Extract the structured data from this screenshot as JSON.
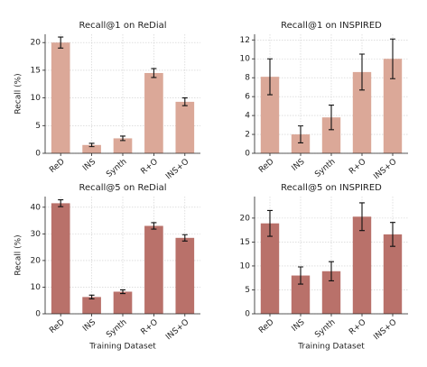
{
  "chart_data": [
    {
      "type": "bar",
      "title": "Recall@1 on ReDial",
      "ylabel": "Recall (%)",
      "categories": [
        "ReD",
        "INS",
        "Synth",
        "R+O",
        "INS+O"
      ],
      "values": [
        20.0,
        1.5,
        2.7,
        14.5,
        9.3
      ],
      "errors": [
        1.0,
        0.3,
        0.4,
        0.8,
        0.7
      ],
      "color": "#dba898",
      "ylim": [
        0,
        21.5
      ],
      "yticks": [
        0,
        5,
        10,
        15,
        20
      ],
      "grid": true
    },
    {
      "type": "bar",
      "title": "Recall@1 on INSPIRED",
      "categories": [
        "ReD",
        "INS",
        "Synth",
        "R+O",
        "INS+O"
      ],
      "values": [
        8.1,
        2.0,
        3.8,
        8.6,
        10.0
      ],
      "errors": [
        1.9,
        0.9,
        1.3,
        1.9,
        2.1
      ],
      "color": "#dba898",
      "ylim": [
        0,
        12.6
      ],
      "yticks": [
        0,
        2,
        4,
        6,
        8,
        10,
        12
      ],
      "grid": true
    },
    {
      "type": "bar",
      "title": "Recall@5 on ReDial",
      "ylabel": "Recall (%)",
      "xlabel": "Training Dataset",
      "categories": [
        "ReD",
        "INS",
        "Synth",
        "R+O",
        "INS+O"
      ],
      "values": [
        41.5,
        6.3,
        8.3,
        33.0,
        28.5
      ],
      "errors": [
        1.3,
        0.7,
        0.7,
        1.2,
        1.2
      ],
      "color": "#b9716a",
      "ylim": [
        0,
        44
      ],
      "yticks": [
        0,
        10,
        20,
        30,
        40
      ],
      "grid": true
    },
    {
      "type": "bar",
      "title": "Recall@5 on INSPIRED",
      "xlabel": "Training Dataset",
      "categories": [
        "ReD",
        "INS",
        "Synth",
        "R+O",
        "INS+O"
      ],
      "values": [
        18.9,
        8.0,
        8.9,
        20.3,
        16.6
      ],
      "errors": [
        2.7,
        1.8,
        2.0,
        2.9,
        2.5
      ],
      "color": "#b9716a",
      "ylim": [
        0,
        24.5
      ],
      "yticks": [
        0,
        5,
        10,
        15,
        20
      ],
      "grid": true
    }
  ]
}
